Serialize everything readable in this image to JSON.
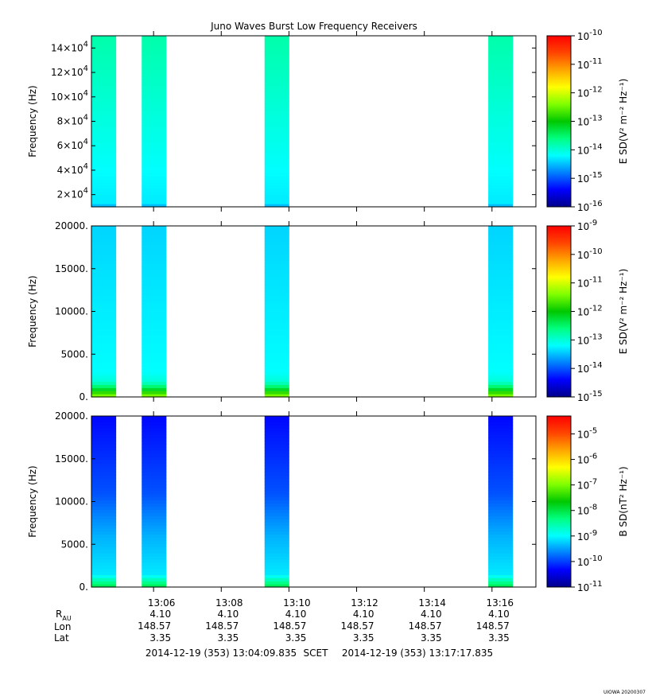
{
  "title": "Juno Waves Burst Low Frequency Receivers",
  "stamp": "UIOWA 20200307",
  "time_range": {
    "start": "2014-12-19 (353) 13:04:09.835",
    "frame": "SCET",
    "end": "2014-12-19 (353) 13:17:17.835"
  },
  "x_axis": {
    "ticks": [
      "13:06",
      "13:08",
      "13:10",
      "13:12",
      "13:14",
      "13:16"
    ],
    "tick_minutes": [
      6,
      8,
      10,
      12,
      14,
      16
    ],
    "range_minutes": [
      4.164,
      17.297
    ]
  },
  "ephemeris": {
    "labels": {
      "r": "R",
      "r_sub": "AU",
      "lon": "Lon",
      "lat": "Lat"
    },
    "r": [
      "4.10",
      "4.10",
      "4.10",
      "4.10",
      "4.10",
      "4.10"
    ],
    "lon": [
      "148.57",
      "148.57",
      "148.57",
      "148.57",
      "148.57",
      "148.57"
    ],
    "lat": [
      "3.35",
      "3.35",
      "3.35",
      "3.35",
      "3.35",
      "3.35"
    ]
  },
  "colors": [
    "#00008b",
    "#0000ff",
    "#0080ff",
    "#00ffff",
    "#00ff80",
    "#00c800",
    "#80ff00",
    "#ffff00",
    "#ffa500",
    "#ff4500",
    "#ff0000"
  ],
  "chart_data": [
    {
      "type": "heatmap",
      "ylabel": "Frequency (Hz)",
      "ylim": [
        10000,
        150000
      ],
      "yticks": [
        {
          "value": 20000,
          "mant": "2×10",
          "exp": "4"
        },
        {
          "value": 40000,
          "mant": "4×10",
          "exp": "4"
        },
        {
          "value": 60000,
          "mant": "6×10",
          "exp": "4"
        },
        {
          "value": 80000,
          "mant": "8×10",
          "exp": "4"
        },
        {
          "value": 100000,
          "mant": "10×10",
          "exp": "4"
        },
        {
          "value": 120000,
          "mant": "12×10",
          "exp": "4"
        },
        {
          "value": 140000,
          "mant": "14×10",
          "exp": "4"
        }
      ],
      "color_scale": "log",
      "clim_exp": [
        -16,
        -10
      ],
      "colorbar_ticks": [
        {
          "mant": "10",
          "exp": "-10"
        },
        {
          "mant": "10",
          "exp": "-11"
        },
        {
          "mant": "10",
          "exp": "-12"
        },
        {
          "mant": "10",
          "exp": "-13"
        },
        {
          "mant": "10",
          "exp": "-14"
        },
        {
          "mant": "10",
          "exp": "-15"
        },
        {
          "mant": "10",
          "exp": "-16"
        }
      ],
      "colorbar_label": "E SD(V² m⁻² Hz⁻¹)",
      "bursts": [
        [
          4.164,
          4.895
        ],
        [
          5.65,
          6.38
        ],
        [
          9.28,
          10.01
        ],
        [
          15.89,
          16.62
        ]
      ],
      "levels": [
        {
          "f": 10000,
          "exp": -15.6
        },
        {
          "f": 11500,
          "exp": -14.3
        },
        {
          "f": 150000,
          "exp": -13.8
        }
      ]
    },
    {
      "type": "heatmap",
      "ylabel": "Frequency (Hz)",
      "ylim": [
        0,
        20000
      ],
      "yticks": [
        {
          "value": 0,
          "text": "0."
        },
        {
          "value": 5000,
          "text": "5000."
        },
        {
          "value": 10000,
          "text": "10000."
        },
        {
          "value": 15000,
          "text": "15000."
        },
        {
          "value": 20000,
          "text": "20000."
        }
      ],
      "color_scale": "log",
      "clim_exp": [
        -15,
        -9
      ],
      "colorbar_ticks": [
        {
          "mant": "10",
          "exp": "-9"
        },
        {
          "mant": "10",
          "exp": "-10"
        },
        {
          "mant": "10",
          "exp": "-11"
        },
        {
          "mant": "10",
          "exp": "-12"
        },
        {
          "mant": "10",
          "exp": "-13"
        },
        {
          "mant": "10",
          "exp": "-14"
        },
        {
          "mant": "10",
          "exp": "-15"
        }
      ],
      "colorbar_label": "E SD(V² m⁻² Hz⁻¹)",
      "bursts": [
        [
          4.164,
          4.895
        ],
        [
          5.65,
          6.38
        ],
        [
          9.28,
          10.01
        ],
        [
          15.89,
          16.62
        ]
      ],
      "levels": [
        {
          "f": 0,
          "exp": -11.3
        },
        {
          "f": 400,
          "exp": -11.6
        },
        {
          "f": 1000,
          "exp": -12.3
        },
        {
          "f": 1800,
          "exp": -13.0
        },
        {
          "f": 3000,
          "exp": -13.2
        },
        {
          "f": 20000,
          "exp": -13.4
        }
      ]
    },
    {
      "type": "heatmap",
      "ylabel": "Frequency (Hz)",
      "ylim": [
        0,
        20000
      ],
      "yticks": [
        {
          "value": 0,
          "text": "0."
        },
        {
          "value": 5000,
          "text": "5000."
        },
        {
          "value": 10000,
          "text": "10000."
        },
        {
          "value": 15000,
          "text": "15000."
        },
        {
          "value": 20000,
          "text": "20000."
        }
      ],
      "color_scale": "log",
      "clim_exp": [
        -11,
        -4.3
      ],
      "colorbar_ticks": [
        {
          "mant": "10",
          "exp": "-5",
          "value": -5
        },
        {
          "mant": "10",
          "exp": "-6",
          "value": -6
        },
        {
          "mant": "10",
          "exp": "-7",
          "value": -7
        },
        {
          "mant": "10",
          "exp": "-8",
          "value": -8
        },
        {
          "mant": "10",
          "exp": "-9",
          "value": -9
        },
        {
          "mant": "10",
          "exp": "-10",
          "value": -10
        },
        {
          "mant": "10",
          "exp": "-11",
          "value": -11
        }
      ],
      "colorbar_label": "B SD(nT² Hz⁻¹)",
      "bursts": [
        [
          4.164,
          4.895
        ],
        [
          5.65,
          6.38
        ],
        [
          9.28,
          10.01
        ],
        [
          15.89,
          16.62
        ]
      ],
      "levels": [
        {
          "f": 0,
          "exp": -8.0
        },
        {
          "f": 600,
          "exp": -8.4
        },
        {
          "f": 1500,
          "exp": -9.1
        },
        {
          "f": 6000,
          "exp": -9.4
        },
        {
          "f": 11000,
          "exp": -9.9
        },
        {
          "f": 20000,
          "exp": -10.3
        }
      ]
    }
  ]
}
